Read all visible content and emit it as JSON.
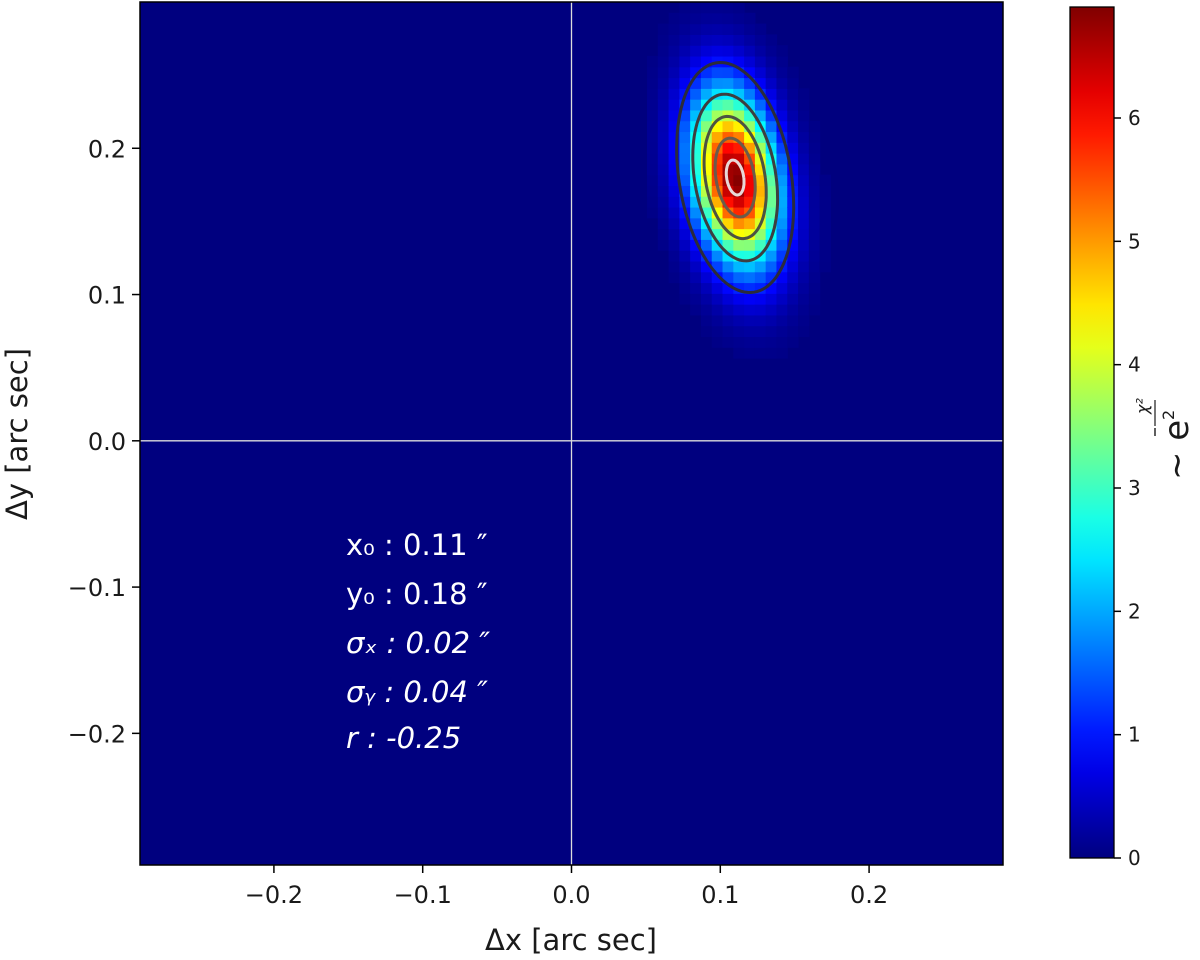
{
  "chart_data": {
    "type": "heatmap",
    "xlabel": "Δx [arc sec]",
    "ylabel": "Δy [arc sec]",
    "xlim": [
      -0.29,
      0.29
    ],
    "ylim": [
      -0.29,
      0.3
    ],
    "x_ticks": [
      -0.2,
      -0.1,
      0.0,
      0.1,
      0.2
    ],
    "x_tick_labels": [
      "−0.2",
      "−0.1",
      "0.0",
      "0.1",
      "0.2"
    ],
    "y_ticks": [
      0.2,
      0.1,
      0.0,
      -0.1,
      -0.2
    ],
    "y_tick_labels": [
      "0.2",
      "0.1",
      "0.0",
      "−0.1",
      "−0.2"
    ],
    "crosshair": {
      "x": 0.0,
      "y": 0.0,
      "color": "#dcdcdc"
    },
    "gaussian": {
      "x0": 0.11,
      "y0": 0.18,
      "sigma_x": 0.02,
      "sigma_y": 0.04,
      "r": -0.25,
      "peak": 6.9
    },
    "contour_levels": [
      {
        "level": 1.0,
        "color": "#2b2b3a"
      },
      {
        "level": 2.5,
        "color": "#3d3f40"
      },
      {
        "level": 4.0,
        "color": "#4c5342"
      },
      {
        "level": 5.5,
        "color": "#6a5c4a"
      },
      {
        "level": 6.6,
        "color": "#e8d8d8"
      }
    ],
    "annotations": {
      "x0": "x₀ : 0.11 ″",
      "y0": "y₀ : 0.18 ″",
      "sigma_x": "σₓ : 0.02 ″",
      "sigma_y": "σᵧ : 0.04 ″",
      "r": "r : -0.25"
    },
    "colorbar": {
      "min": 0,
      "max": 6.9,
      "ticks": [
        0,
        1,
        2,
        3,
        4,
        5,
        6
      ],
      "tick_labels": [
        "0",
        "1",
        "2",
        "3",
        "4",
        "5",
        "6"
      ],
      "label_prefix": "∼ e",
      "label_sup": "χ²",
      "label_sub": "2",
      "colormap": "jet"
    },
    "text_color": "#ffffff"
  }
}
